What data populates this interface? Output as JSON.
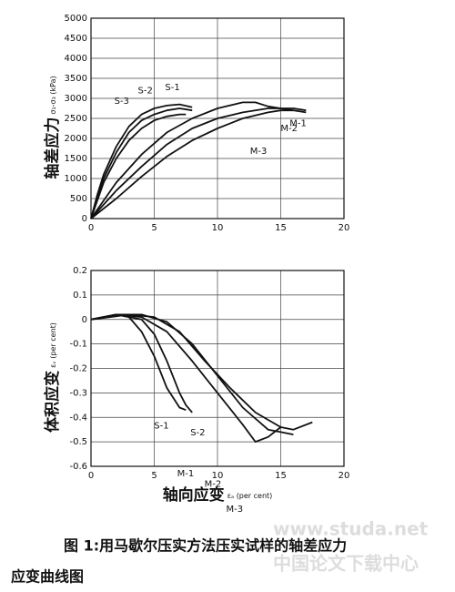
{
  "chart_data": [
    {
      "type": "line",
      "ylabel": "轴差应力",
      "ylabel_unit": "σ₁-σ₃ (kPa)",
      "xlim": [
        0,
        20
      ],
      "xticks": [
        0,
        5,
        10,
        15,
        20
      ],
      "ylim": [
        0,
        5000
      ],
      "yticks": [
        0,
        500,
        1000,
        1500,
        2000,
        2500,
        3000,
        3500,
        4000,
        4500,
        5000
      ],
      "grid": true,
      "series": [
        {
          "name": "S-1",
          "color": "#111",
          "x": [
            0,
            0.5,
            1,
            2,
            3,
            4,
            5,
            6,
            7,
            8
          ],
          "values": [
            0,
            600,
            1100,
            1800,
            2300,
            2600,
            2750,
            2820,
            2850,
            2780
          ]
        },
        {
          "name": "S-2",
          "color": "#111",
          "x": [
            0,
            1,
            2,
            3,
            4,
            5,
            6,
            7,
            8
          ],
          "values": [
            0,
            1000,
            1650,
            2150,
            2450,
            2600,
            2700,
            2750,
            2700
          ]
        },
        {
          "name": "S-3",
          "color": "#111",
          "x": [
            0,
            1,
            2,
            3,
            4,
            5,
            6,
            7,
            7.5
          ],
          "values": [
            0,
            900,
            1500,
            1950,
            2250,
            2450,
            2550,
            2600,
            2600
          ]
        },
        {
          "name": "M-1",
          "color": "#111",
          "x": [
            0,
            2,
            4,
            6,
            8,
            10,
            12,
            13,
            14,
            15,
            17
          ],
          "values": [
            0,
            900,
            1600,
            2150,
            2500,
            2750,
            2900,
            2900,
            2800,
            2750,
            2650
          ]
        },
        {
          "name": "M-2",
          "color": "#111",
          "x": [
            0,
            2,
            4,
            6,
            8,
            10,
            12,
            14,
            16,
            17
          ],
          "values": [
            0,
            700,
            1300,
            1850,
            2250,
            2500,
            2650,
            2750,
            2750,
            2700
          ]
        },
        {
          "name": "M-3",
          "color": "#111",
          "x": [
            0,
            2,
            4,
            6,
            8,
            10,
            12,
            14,
            15,
            16
          ],
          "values": [
            0,
            500,
            1050,
            1550,
            1950,
            2250,
            2500,
            2650,
            2700,
            2700
          ]
        }
      ]
    },
    {
      "type": "line",
      "ylabel": "体积应变",
      "ylabel_unit": "εᵥ (per cent)",
      "xlabel": "轴向应变",
      "xlabel_unit": "εₐ (per cent)",
      "xlim": [
        0,
        20
      ],
      "xticks": [
        0,
        5,
        10,
        15,
        20
      ],
      "ylim": [
        -0.6,
        0.2
      ],
      "yticks": [
        0.2,
        0.1,
        0,
        -0.1,
        -0.2,
        -0.3,
        -0.4,
        -0.5,
        -0.6
      ],
      "grid": true,
      "series": [
        {
          "name": "S-1",
          "color": "#111",
          "x": [
            0,
            1,
            2,
            3,
            4,
            5,
            6,
            7,
            7.5
          ],
          "values": [
            0,
            0.01,
            0.02,
            0.01,
            -0.05,
            -0.15,
            -0.28,
            -0.36,
            -0.37
          ]
        },
        {
          "name": "S-2",
          "color": "#111",
          "x": [
            0,
            2,
            4,
            5,
            6,
            7,
            7.5,
            8
          ],
          "values": [
            0,
            0.02,
            0,
            -0.06,
            -0.17,
            -0.3,
            -0.35,
            -0.38
          ]
        },
        {
          "name": "M-1",
          "color": "#111",
          "x": [
            0,
            2,
            4,
            6,
            8,
            10,
            12,
            13,
            14,
            15
          ],
          "values": [
            0,
            0.02,
            0.01,
            -0.05,
            -0.17,
            -0.3,
            -0.43,
            -0.5,
            -0.48,
            -0.44
          ]
        },
        {
          "name": "M-2",
          "color": "#111",
          "x": [
            0,
            2,
            4,
            6,
            8,
            10,
            12,
            14,
            15,
            16
          ],
          "values": [
            0,
            0.02,
            0.02,
            -0.01,
            -0.1,
            -0.23,
            -0.36,
            -0.45,
            -0.46,
            -0.47
          ]
        },
        {
          "name": "M-3",
          "color": "#111",
          "x": [
            0,
            3,
            5,
            7,
            9,
            11,
            13,
            15,
            16,
            17.5
          ],
          "values": [
            0,
            0.02,
            0.01,
            -0.05,
            -0.17,
            -0.28,
            -0.38,
            -0.44,
            -0.45,
            -0.42
          ]
        }
      ]
    }
  ],
  "caption": [
    "图 1:用马歇尔压实方法压实试样的轴差应力",
    "应变曲线图"
  ],
  "watermark": [
    "www.studa.net",
    "中国论文下载中心"
  ]
}
